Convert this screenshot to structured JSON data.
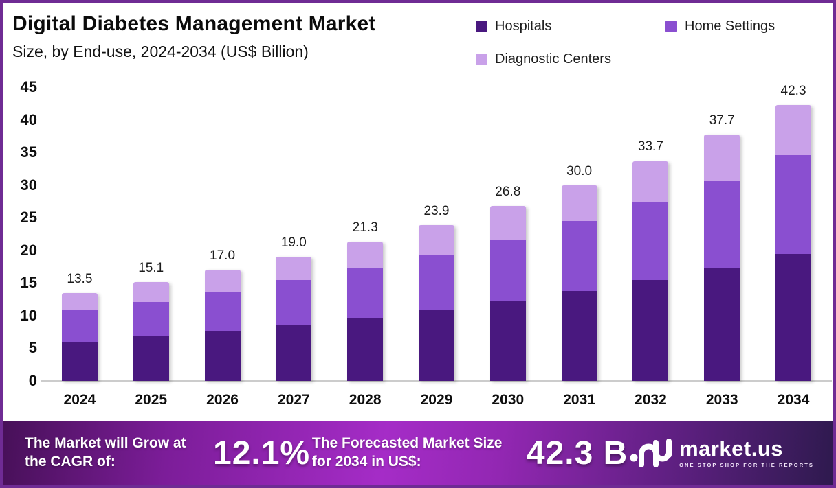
{
  "page": {
    "border_color": "#6f2b94",
    "background": "#ffffff"
  },
  "header": {
    "title": "Digital Diabetes Management Market",
    "subtitle": "Size, by End-use, 2024-2034 (US$ Billion)"
  },
  "chart_data": {
    "type": "bar",
    "stacked": true,
    "title": "Digital Diabetes Management Market",
    "subtitle": "Size, by End-use, 2024-2034 (US$ Billion)",
    "unit": "US$ Billion",
    "categories": [
      "2024",
      "2025",
      "2026",
      "2027",
      "2028",
      "2029",
      "2030",
      "2031",
      "2032",
      "2033",
      "2034"
    ],
    "series": [
      {
        "name": "Hospitals",
        "color": "#49187f",
        "values": [
          6.0,
          6.8,
          7.7,
          8.6,
          9.6,
          10.8,
          12.3,
          13.8,
          15.5,
          17.4,
          19.5
        ]
      },
      {
        "name": "Home Settings",
        "color": "#8a4fd0",
        "values": [
          4.8,
          5.3,
          5.9,
          6.9,
          7.6,
          8.6,
          9.3,
          10.7,
          11.9,
          13.3,
          15.1
        ]
      },
      {
        "name": "Diagnostic Centers",
        "color": "#c9a1e9",
        "values": [
          2.7,
          3.0,
          3.4,
          3.5,
          4.1,
          4.5,
          5.2,
          5.5,
          6.3,
          7.0,
          7.7
        ]
      }
    ],
    "totals": [
      13.5,
      15.1,
      17.0,
      19.0,
      21.3,
      23.9,
      26.8,
      30.0,
      33.7,
      37.7,
      42.3
    ],
    "xlabel": "",
    "ylabel": "",
    "ylim": [
      0,
      45
    ],
    "ytick_step": 5,
    "grid": false,
    "legend_position": "top-right",
    "value_labels": "total-above-bar"
  },
  "footer": {
    "stats": [
      {
        "label": "The Market will Grow at the CAGR of:",
        "value": "12.1%"
      },
      {
        "label": "The Forecasted Market Size for 2034 in US$:",
        "value": "42.3 B"
      }
    ],
    "logo": {
      "name": "market.us",
      "tagline": "ONE STOP SHOP FOR THE REPORTS"
    }
  }
}
